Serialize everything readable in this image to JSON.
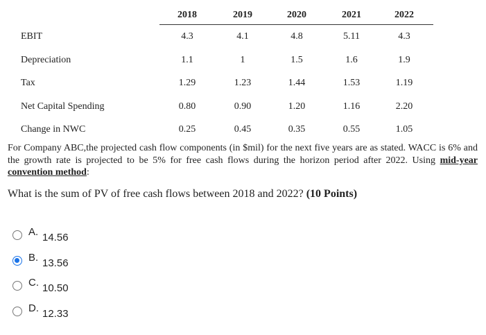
{
  "table": {
    "years": [
      "2018",
      "2019",
      "2020",
      "2021",
      "2022"
    ],
    "rows": [
      {
        "label": "EBIT",
        "values": [
          "4.3",
          "4.1",
          "4.8",
          "5.11",
          "4.3"
        ]
      },
      {
        "label": "Depreciation",
        "values": [
          "1.1",
          "1",
          "1.5",
          "1.6",
          "1.9"
        ]
      },
      {
        "label": "Tax",
        "values": [
          "1.29",
          "1.23",
          "1.44",
          "1.53",
          "1.19"
        ]
      },
      {
        "label": "Net Capital Spending",
        "values": [
          "0.80",
          "0.90",
          "1.20",
          "1.16",
          "2.20"
        ]
      },
      {
        "label": "Change in NWC",
        "values": [
          "0.25",
          "0.45",
          "0.35",
          "0.55",
          "1.05"
        ]
      }
    ]
  },
  "paragraph": {
    "text_main": "For Company ABC,the projected cash flow components (in $mil) for the next five years are as stated. WACC is 6% and the growth rate is projected to be 5% for free cash flows during the horizon period after 2022. Using ",
    "link": "mid-year convention method",
    "text_end": ":"
  },
  "question": {
    "text": "What is the sum of PV of free cash flows between 2018 and 2022? ",
    "points": "(10 Points)"
  },
  "options": [
    {
      "letter": "A.",
      "value": "14.56",
      "selected": false
    },
    {
      "letter": "B.",
      "value": "13.56",
      "selected": true
    },
    {
      "letter": "C.",
      "value": "10.50",
      "selected": false
    },
    {
      "letter": "D.",
      "value": "12.33",
      "selected": false
    }
  ]
}
